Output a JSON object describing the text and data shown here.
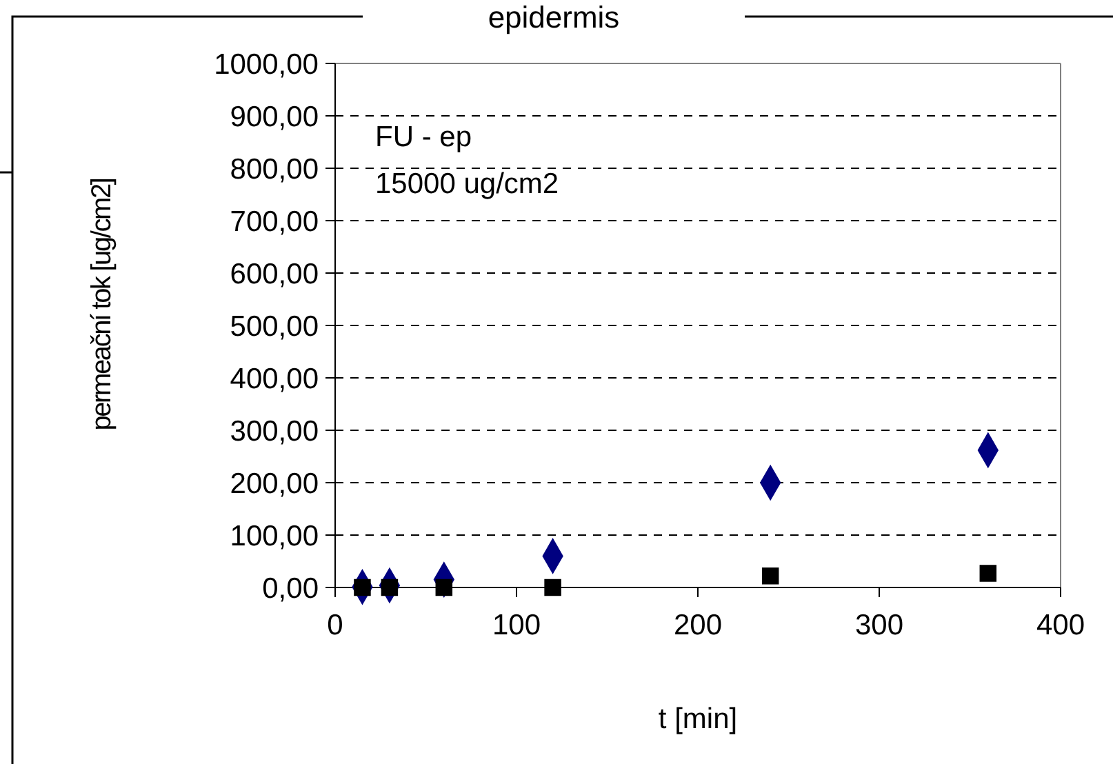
{
  "chart_data": {
    "type": "scatter",
    "title": "epidermis",
    "xlabel": "t [min]",
    "ylabel": "permeační tok [ug/cm2]",
    "annotations": [
      "FU - ep",
      "15000 ug/cm2"
    ],
    "x": [
      15,
      30,
      60,
      120,
      240,
      360
    ],
    "series": [
      {
        "color": "#000080",
        "marker": "diamond",
        "values": [
          1,
          4,
          15,
          60,
          200,
          262
        ]
      },
      {
        "color": "#000000",
        "marker": "square",
        "values": [
          0,
          0,
          0,
          0,
          22,
          27
        ]
      }
    ],
    "xlim": [
      0,
      400
    ],
    "xticks": [
      0,
      100,
      200,
      300,
      400
    ],
    "ylim": [
      0,
      1000
    ],
    "yticks": [
      {
        "value": 0,
        "label": "0,00"
      },
      {
        "value": 100,
        "label": "100,00"
      },
      {
        "value": 200,
        "label": "200,00"
      },
      {
        "value": 300,
        "label": "300,00"
      },
      {
        "value": 400,
        "label": "400,00"
      },
      {
        "value": 500,
        "label": "500,00"
      },
      {
        "value": 600,
        "label": "600,00"
      },
      {
        "value": 700,
        "label": "700,00"
      },
      {
        "value": 800,
        "label": "800,00"
      },
      {
        "value": 900,
        "label": "900,00"
      },
      {
        "value": 1000,
        "label": "1000,00"
      }
    ],
    "grid": "y"
  }
}
